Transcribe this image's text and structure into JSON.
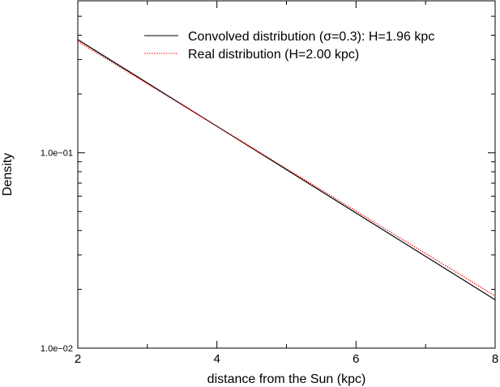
{
  "chart_data": {
    "type": "line",
    "xlabel": "distance from the Sun (kpc)",
    "ylabel": "Density",
    "xlim": [
      2,
      8
    ],
    "ylim": [
      0.01,
      0.6
    ],
    "yscale": "log",
    "xticks": [
      2,
      4,
      6,
      8
    ],
    "xtick_labels": [
      "2",
      "4",
      "6",
      "8"
    ],
    "yticks": [
      0.1,
      0.01
    ],
    "ytick_labels": [
      "1.0e−01",
      "1.0e−02"
    ],
    "grid": false,
    "legend_position": "top-right",
    "series": [
      {
        "name": "Convolved distribution (σ=0.3): H=1.96 kpc",
        "color": "#000000",
        "style": "solid",
        "x": [
          2,
          8
        ],
        "y": [
          0.38,
          0.0177
        ]
      },
      {
        "name": "Real distribution (H=2.00 kpc)",
        "color": "#ff0000",
        "style": "dotted",
        "x": [
          2,
          8
        ],
        "y": [
          0.372,
          0.0185
        ]
      }
    ]
  }
}
